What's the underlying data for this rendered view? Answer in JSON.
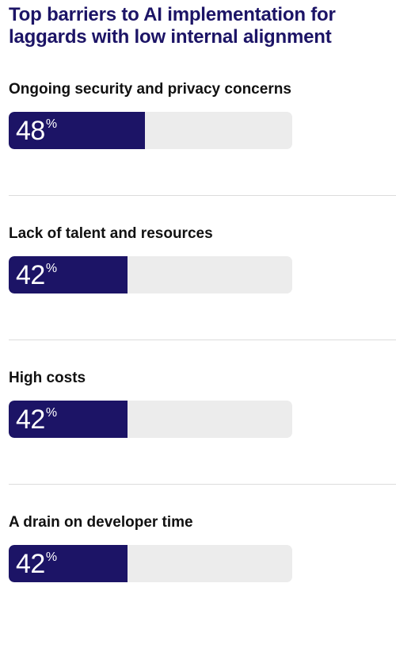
{
  "chart_data": {
    "type": "bar",
    "orientation": "horizontal",
    "title": "Top barriers to AI implementation for laggards with low internal alignment",
    "categories": [
      "Ongoing security and privacy concerns",
      "Lack of talent and resources",
      "High costs",
      "A drain on developer time"
    ],
    "values": [
      48,
      42,
      42,
      42
    ],
    "unit": "%",
    "xlim": [
      0,
      100
    ],
    "bar_color": "#1c1466",
    "track_color": "#ececec",
    "grid": false,
    "legend": "none"
  }
}
